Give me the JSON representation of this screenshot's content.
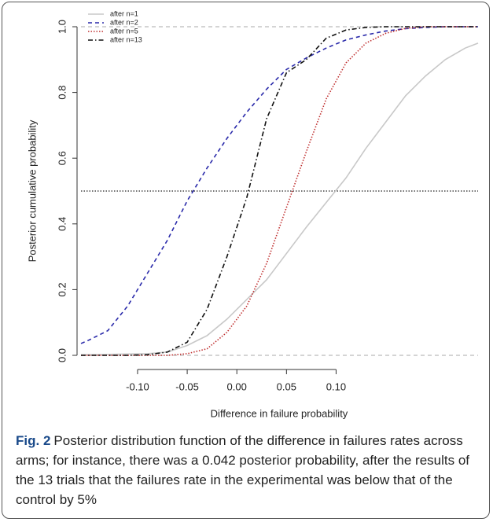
{
  "chart_data": {
    "type": "line",
    "x_label": "Difference in failure probability",
    "y_label": "Posterior cumulative probability",
    "x": [
      -0.157,
      -0.15,
      -0.13,
      -0.11,
      -0.09,
      -0.07,
      -0.05,
      -0.03,
      -0.01,
      0.01,
      0.03,
      0.05,
      0.07,
      0.09,
      0.11,
      0.13,
      0.15,
      0.17,
      0.19,
      0.21,
      0.23,
      0.243
    ],
    "series": [
      {
        "name": "after n=1",
        "color": "#c8c8c8",
        "style": "solid",
        "values": [
          0.002,
          0.002,
          0.003,
          0.004,
          0.005,
          0.01,
          0.03,
          0.06,
          0.11,
          0.17,
          0.23,
          0.31,
          0.39,
          0.465,
          0.54,
          0.63,
          0.71,
          0.79,
          0.85,
          0.9,
          0.935,
          0.95
        ]
      },
      {
        "name": "after n=2",
        "color": "#2a2aaa",
        "style": "dashed",
        "values": [
          0.036,
          0.045,
          0.075,
          0.15,
          0.25,
          0.35,
          0.47,
          0.57,
          0.66,
          0.74,
          0.81,
          0.87,
          0.905,
          0.935,
          0.96,
          0.975,
          0.987,
          0.994,
          0.998,
          1,
          1,
          1
        ]
      },
      {
        "name": "after n=5",
        "color": "#c03030",
        "style": "dotted",
        "values": [
          0,
          0,
          0,
          0,
          0,
          0,
          0.005,
          0.02,
          0.07,
          0.15,
          0.28,
          0.45,
          0.62,
          0.78,
          0.89,
          0.95,
          0.98,
          0.995,
          1,
          1,
          1,
          1
        ]
      },
      {
        "name": "after n=13",
        "color": "#111111",
        "style": "dashdot",
        "values": [
          0,
          0,
          0,
          0,
          0.002,
          0.01,
          0.04,
          0.14,
          0.3,
          0.48,
          0.72,
          0.86,
          0.9,
          0.965,
          0.99,
          0.998,
          1,
          1,
          1,
          1,
          1,
          1
        ]
      }
    ],
    "xlim": [
      -0.157,
      0.243
    ],
    "ylim": [
      0,
      1
    ],
    "xticks": [
      {
        "value": -0.1,
        "label": "-0.10"
      },
      {
        "value": -0.05,
        "label": "-0.05"
      },
      {
        "value": 0,
        "label": "0.00"
      },
      {
        "value": 0.05,
        "label": "0.05"
      },
      {
        "value": 0.1,
        "label": "0.10"
      }
    ],
    "yticks": [
      {
        "value": 0,
        "label": "0.0"
      },
      {
        "value": 0.2,
        "label": "0.2"
      },
      {
        "value": 0.4,
        "label": "0.4"
      },
      {
        "value": 0.6,
        "label": "0.6"
      },
      {
        "value": 0.8,
        "label": "0.8"
      },
      {
        "value": 1,
        "label": "1.0"
      }
    ],
    "reference_lines": [
      {
        "value": 0,
        "color": "#bbbbbb",
        "style": "dashed"
      },
      {
        "value": 0.5,
        "color": "#222222",
        "style": "dotted"
      },
      {
        "value": 1,
        "color": "#bbbbbb",
        "style": "dashed"
      }
    ],
    "legend_position": "top-left"
  },
  "caption": {
    "label": "Fig. 2",
    "text": "Posterior distribution function of the difference in failures rates across arms; for instance, there was a 0.042 posterior probability, after the results of the 13 trials that the failures rate in the experimental was below that of the control by 5%"
  }
}
